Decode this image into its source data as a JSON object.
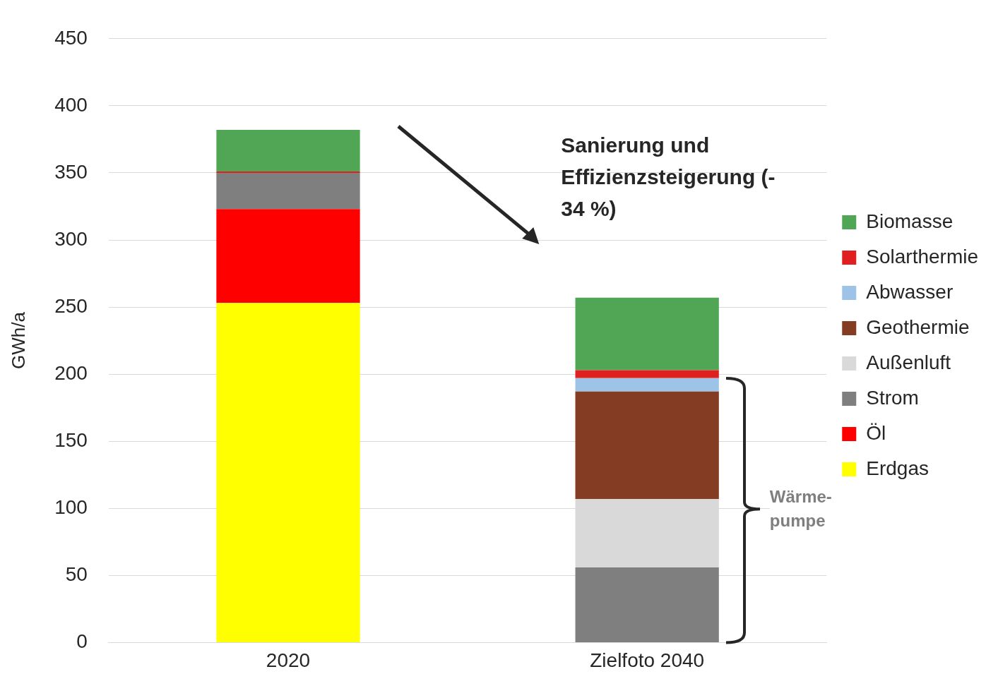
{
  "chart_data": {
    "type": "bar",
    "stacked": true,
    "categories": [
      "2020",
      "Zielfoto 2040"
    ],
    "ylabel": "GWh/a",
    "ylim": [
      0,
      450
    ],
    "yticks": [
      0,
      50,
      100,
      150,
      200,
      250,
      300,
      350,
      400,
      450
    ],
    "grid": "y",
    "legend": "right",
    "series": [
      {
        "name": "Erdgas",
        "color": "#ffff00",
        "values": [
          253,
          null
        ]
      },
      {
        "name": "Öl",
        "color": "#ff0000",
        "values": [
          70,
          null
        ]
      },
      {
        "name": "Strom",
        "color": "#7f7f7f",
        "values": [
          27,
          56
        ]
      },
      {
        "name": "Außenluft",
        "color": "#d9d9d9",
        "values": [
          null,
          51
        ]
      },
      {
        "name": "Geothermie",
        "color": "#843c22",
        "values": [
          null,
          80
        ]
      },
      {
        "name": "Abwasser",
        "color": "#9dc3e6",
        "values": [
          null,
          10
        ]
      },
      {
        "name": "Solarthermie",
        "color": "#e02020",
        "values": [
          1,
          6
        ]
      },
      {
        "name": "Biomasse",
        "color": "#51a655",
        "values": [
          31,
          54
        ]
      }
    ],
    "annotations": [
      "Sanierung und Effizienzsteigerung (- 34 %)",
      "Wärme-pumpe"
    ]
  }
}
